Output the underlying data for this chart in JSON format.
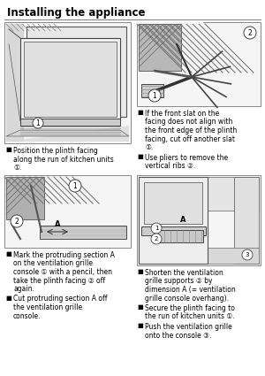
{
  "title": "Installing the appliance",
  "background_color": "#ffffff",
  "text_color": "#000000",
  "figsize": [
    3.0,
    4.25
  ],
  "dpi": 100,
  "title_fontsize": 8.5,
  "bullet_fontsize": 5.5,
  "circled_nums": {
    "1": "①",
    "2": "②",
    "3": "③"
  },
  "bullets_top_left": [
    "Position the plinth facing along the run of kitchen units ①."
  ],
  "bullets_top_right": [
    "If the front slat on the facing does not align with the front edge of the plinth facing, cut off another slat ①.",
    "Use pliers to remove the vertical ribs ②."
  ],
  "bullets_bottom_left": [
    "Mark the protruding section A on the ventilation grille console ① with a pencil, then take the plinth facing ② off again.",
    "Cut protruding section A off the ventilation grille console."
  ],
  "bullets_bottom_right": [
    "Shorten the ventilation grille supports ② by dimension A (= ventilation grille console overhang).",
    "Secure the plinth facing to the run of kitchen units ①.",
    "Push the ventilation grille onto the console ③."
  ]
}
